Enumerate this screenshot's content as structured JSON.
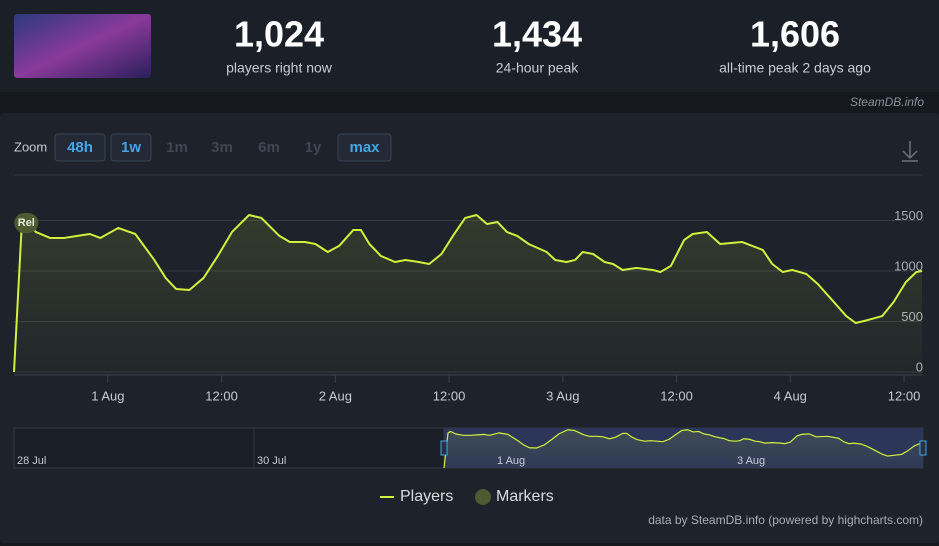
{
  "header": {
    "stats": [
      {
        "value": "1,024",
        "label": "players right now"
      },
      {
        "value": "1,434",
        "label": "24-hour peak"
      },
      {
        "value": "1,606",
        "label": "all-time peak 2 days ago"
      }
    ],
    "watermark": "SteamDB.info"
  },
  "zoom": {
    "label": "Zoom",
    "buttons": [
      {
        "text": "48h",
        "enabled": true
      },
      {
        "text": "1w",
        "enabled": true
      },
      {
        "text": "1m",
        "enabled": false
      },
      {
        "text": "3m",
        "enabled": false
      },
      {
        "text": "6m",
        "enabled": false
      },
      {
        "text": "1y",
        "enabled": false
      },
      {
        "text": "max",
        "enabled": true
      }
    ]
  },
  "chart_data": {
    "type": "area-line",
    "x": [
      -9.9,
      -9.1,
      -8.6,
      -7.6,
      -6.1,
      -4.6,
      -3.2,
      -1.9,
      -0.8,
      1.1,
      2.9,
      4.9,
      6.1,
      7.2,
      8.6,
      10.1,
      11.6,
      13.1,
      14.9,
      16.2,
      18.1,
      19.2,
      20.8,
      21.9,
      23.2,
      24.4,
      25.9,
      26.7,
      27.6,
      28.8,
      30.3,
      31.4,
      32.8,
      33.9,
      35.2,
      36.4,
      37.7,
      38.9,
      40,
      41.1,
      42.1,
      43.2,
      44.4,
      46.3,
      47.2,
      48.4,
      49.3,
      50.1,
      51.2,
      52.4,
      53.3,
      54.3,
      55.8,
      57.5,
      58.3,
      59.4,
      60.8,
      61.7,
      63.2,
      64.6,
      66.9,
      69.1,
      70.1,
      71.2,
      72.2,
      73.7,
      74.9,
      76.4,
      77.9,
      78.9,
      80.2,
      81.7,
      82.9,
      84.2,
      85.3,
      85.9
    ],
    "series": [
      {
        "name": "Players",
        "color": "#d2f03c",
        "values": [
          0,
          1425,
          1485,
          1386,
          1327,
          1327,
          1347,
          1366,
          1327,
          1426,
          1366,
          1109,
          931,
          822,
          812,
          931,
          1149,
          1386,
          1554,
          1525,
          1347,
          1287,
          1287,
          1267,
          1188,
          1248,
          1406,
          1406,
          1267,
          1149,
          1089,
          1109,
          1089,
          1069,
          1168,
          1347,
          1525,
          1554,
          1465,
          1485,
          1386,
          1347,
          1267,
          1188,
          1109,
          1089,
          1109,
          1188,
          1168,
          1089,
          1069,
          1010,
          1030,
          1010,
          990,
          1050,
          1307,
          1366,
          1386,
          1267,
          1287,
          1208,
          1069,
          990,
          1010,
          970,
          871,
          713,
          554,
          485,
          515,
          554,
          693,
          891,
          990,
          1000
        ]
      }
    ],
    "markers": {
      "name": "Markers",
      "color": "#4b5a30",
      "points": [
        {
          "x": -8.6,
          "label": "Rel"
        }
      ]
    },
    "xlim": [
      -9.9,
      86
    ],
    "xticks": [
      {
        "value": 0,
        "label": "1 Aug"
      },
      {
        "value": 12,
        "label": "12:00"
      },
      {
        "value": 24,
        "label": "2 Aug"
      },
      {
        "value": 36,
        "label": "12:00"
      },
      {
        "value": 48,
        "label": "3 Aug"
      },
      {
        "value": 60,
        "label": "12:00"
      },
      {
        "value": 72,
        "label": "4 Aug"
      },
      {
        "value": 84,
        "label": "12:00"
      }
    ],
    "ylim": [
      0,
      1950
    ],
    "yticks": [
      0,
      500,
      1000,
      1500
    ],
    "grid": true,
    "navigator": {
      "labels": [
        "28 Jul",
        "30 Jul",
        "1 Aug",
        "3 Aug"
      ]
    },
    "credit": "data by SteamDB.info (powered by highcharts.com)"
  }
}
